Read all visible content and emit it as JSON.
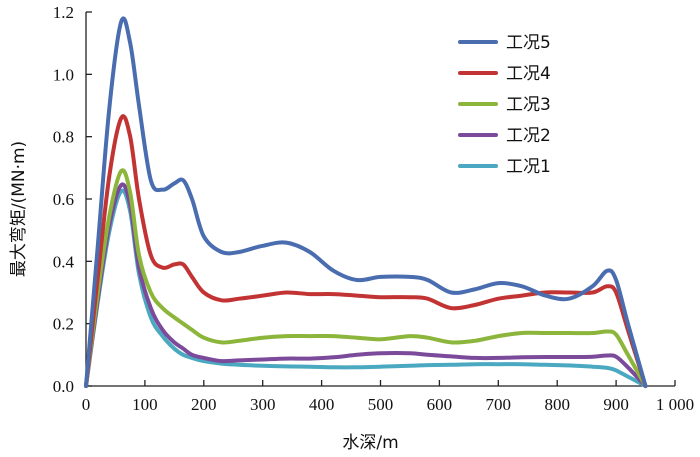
{
  "chart_data": {
    "type": "line",
    "title": "",
    "xlabel": "水深/m",
    "ylabel": "最大弯矩/(MN·m)",
    "xlim": [
      0,
      1000
    ],
    "ylim": [
      0,
      1.2
    ],
    "xticks": [
      0,
      100,
      200,
      300,
      400,
      500,
      600,
      700,
      800,
      900,
      1000
    ],
    "xtick_labels": [
      "0",
      "100",
      "200",
      "300",
      "400",
      "500",
      "600",
      "700",
      "800",
      "900",
      "1 000"
    ],
    "yticks": [
      0,
      0.2,
      0.4,
      0.6,
      0.8,
      1.0,
      1.2
    ],
    "ytick_labels": [
      "0.0",
      "0.2",
      "0.4",
      "0.6",
      "0.8",
      "1.0",
      "1.2"
    ],
    "grid": false,
    "legend_position": "top-right",
    "series": [
      {
        "name": "工况5",
        "color": "#4a6db0",
        "x": [
          0,
          20,
          40,
          60,
          75,
          90,
          110,
          130,
          150,
          165,
          180,
          200,
          230,
          260,
          300,
          340,
          380,
          420,
          460,
          500,
          550,
          580,
          620,
          660,
          700,
          740,
          780,
          820,
          860,
          885,
          900,
          920,
          950
        ],
        "y": [
          0,
          0.45,
          0.9,
          1.17,
          1.1,
          0.9,
          0.66,
          0.63,
          0.65,
          0.66,
          0.6,
          0.48,
          0.43,
          0.43,
          0.45,
          0.46,
          0.43,
          0.37,
          0.34,
          0.35,
          0.35,
          0.34,
          0.3,
          0.31,
          0.33,
          0.32,
          0.29,
          0.28,
          0.32,
          0.37,
          0.34,
          0.2,
          0
        ]
      },
      {
        "name": "工况4",
        "color": "#c23434",
        "x": [
          0,
          20,
          40,
          60,
          75,
          90,
          110,
          130,
          150,
          165,
          180,
          200,
          230,
          260,
          300,
          340,
          380,
          420,
          460,
          500,
          550,
          580,
          620,
          660,
          700,
          740,
          780,
          820,
          860,
          885,
          900,
          920,
          950
        ],
        "y": [
          0,
          0.35,
          0.68,
          0.86,
          0.8,
          0.6,
          0.42,
          0.38,
          0.39,
          0.39,
          0.35,
          0.3,
          0.275,
          0.28,
          0.29,
          0.3,
          0.295,
          0.295,
          0.29,
          0.285,
          0.285,
          0.28,
          0.25,
          0.26,
          0.28,
          0.29,
          0.3,
          0.3,
          0.3,
          0.32,
          0.3,
          0.18,
          0
        ]
      },
      {
        "name": "工况3",
        "color": "#8cb53c",
        "x": [
          0,
          20,
          40,
          60,
          75,
          90,
          110,
          130,
          150,
          165,
          180,
          200,
          230,
          260,
          300,
          340,
          380,
          420,
          460,
          500,
          550,
          580,
          620,
          660,
          700,
          740,
          780,
          820,
          860,
          885,
          900,
          920,
          950
        ],
        "y": [
          0,
          0.3,
          0.55,
          0.69,
          0.62,
          0.42,
          0.3,
          0.25,
          0.22,
          0.2,
          0.18,
          0.155,
          0.14,
          0.145,
          0.155,
          0.16,
          0.16,
          0.16,
          0.155,
          0.15,
          0.16,
          0.155,
          0.14,
          0.145,
          0.16,
          0.17,
          0.17,
          0.17,
          0.17,
          0.175,
          0.165,
          0.1,
          0
        ]
      },
      {
        "name": "工况2",
        "color": "#7c4a9a",
        "x": [
          0,
          20,
          40,
          60,
          75,
          90,
          110,
          130,
          150,
          165,
          180,
          200,
          230,
          260,
          300,
          340,
          380,
          420,
          460,
          500,
          550,
          580,
          620,
          660,
          700,
          740,
          780,
          820,
          860,
          885,
          900,
          920,
          950
        ],
        "y": [
          0,
          0.28,
          0.52,
          0.645,
          0.58,
          0.38,
          0.25,
          0.18,
          0.14,
          0.12,
          0.1,
          0.09,
          0.08,
          0.082,
          0.085,
          0.088,
          0.088,
          0.092,
          0.1,
          0.105,
          0.105,
          0.1,
          0.095,
          0.09,
          0.09,
          0.092,
          0.093,
          0.093,
          0.094,
          0.098,
          0.094,
          0.06,
          0
        ]
      },
      {
        "name": "工况1",
        "color": "#4aa8c0",
        "x": [
          0,
          20,
          40,
          60,
          75,
          90,
          110,
          130,
          150,
          165,
          180,
          200,
          230,
          260,
          300,
          340,
          380,
          420,
          460,
          500,
          550,
          580,
          620,
          660,
          700,
          740,
          780,
          820,
          860,
          885,
          900,
          920,
          950
        ],
        "y": [
          0,
          0.27,
          0.5,
          0.625,
          0.56,
          0.36,
          0.22,
          0.16,
          0.12,
          0.1,
          0.09,
          0.08,
          0.072,
          0.068,
          0.065,
          0.063,
          0.062,
          0.06,
          0.06,
          0.062,
          0.065,
          0.067,
          0.068,
          0.07,
          0.07,
          0.07,
          0.068,
          0.066,
          0.062,
          0.058,
          0.05,
          0.03,
          0
        ]
      }
    ]
  }
}
